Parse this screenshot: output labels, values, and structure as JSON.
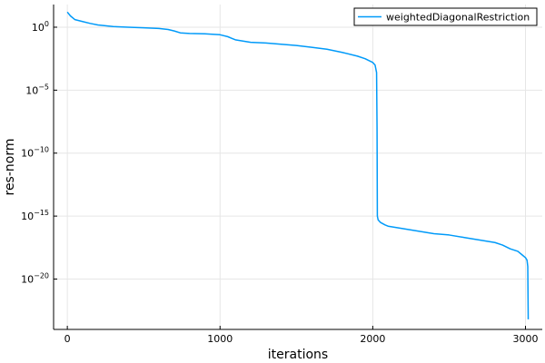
{
  "chart_data": {
    "type": "line",
    "title": "",
    "xlabel": "iterations",
    "ylabel": "res-norm",
    "x_ticks": [
      0,
      1000,
      2000,
      3000
    ],
    "y_ticks": [
      0,
      -5,
      -10,
      -15,
      -20
    ],
    "y_scale": "log10",
    "xlim": [
      -90,
      3110
    ],
    "ylim": [
      -24.0,
      1.8
    ],
    "grid": true,
    "legend_position": "top-right",
    "series": [
      {
        "name": "weightedDiagonalRestriction",
        "color": "#009af9",
        "points": [
          [
            0,
            1.2
          ],
          [
            20,
            0.9
          ],
          [
            50,
            0.6
          ],
          [
            100,
            0.45
          ],
          [
            150,
            0.3
          ],
          [
            200,
            0.18
          ],
          [
            300,
            0.05
          ],
          [
            400,
            0.0
          ],
          [
            500,
            -0.05
          ],
          [
            600,
            -0.1
          ],
          [
            660,
            -0.18
          ],
          [
            700,
            -0.3
          ],
          [
            740,
            -0.45
          ],
          [
            800,
            -0.5
          ],
          [
            900,
            -0.52
          ],
          [
            1000,
            -0.6
          ],
          [
            1050,
            -0.75
          ],
          [
            1100,
            -1.0
          ],
          [
            1150,
            -1.1
          ],
          [
            1200,
            -1.2
          ],
          [
            1300,
            -1.25
          ],
          [
            1400,
            -1.35
          ],
          [
            1500,
            -1.45
          ],
          [
            1600,
            -1.6
          ],
          [
            1700,
            -1.75
          ],
          [
            1800,
            -2.0
          ],
          [
            1900,
            -2.3
          ],
          [
            1950,
            -2.5
          ],
          [
            2000,
            -2.8
          ],
          [
            2015,
            -3.0
          ],
          [
            2020,
            -3.3
          ],
          [
            2025,
            -3.6
          ],
          [
            2028,
            -8.0
          ],
          [
            2030,
            -15.0
          ],
          [
            2035,
            -15.3
          ],
          [
            2050,
            -15.5
          ],
          [
            2080,
            -15.7
          ],
          [
            2100,
            -15.8
          ],
          [
            2150,
            -15.9
          ],
          [
            2200,
            -16.0
          ],
          [
            2300,
            -16.2
          ],
          [
            2400,
            -16.4
          ],
          [
            2500,
            -16.5
          ],
          [
            2600,
            -16.7
          ],
          [
            2700,
            -16.9
          ],
          [
            2800,
            -17.1
          ],
          [
            2850,
            -17.3
          ],
          [
            2900,
            -17.6
          ],
          [
            2950,
            -17.8
          ],
          [
            2980,
            -18.1
          ],
          [
            3000,
            -18.3
          ],
          [
            3010,
            -18.5
          ],
          [
            3015,
            -19.0
          ],
          [
            3018,
            -23.2
          ]
        ]
      }
    ]
  }
}
